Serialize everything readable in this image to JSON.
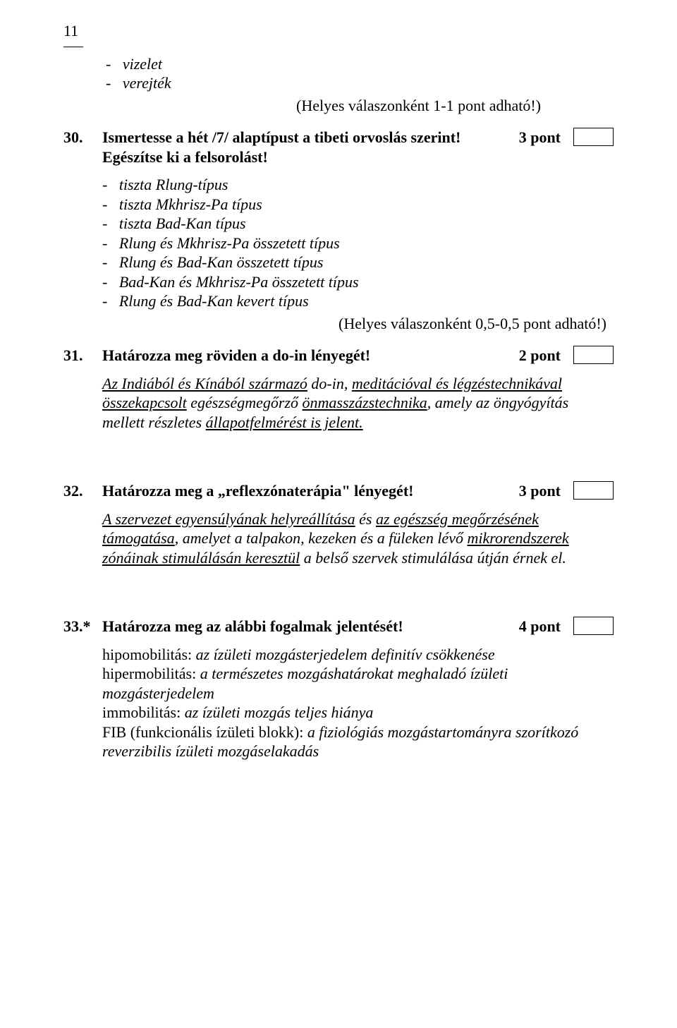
{
  "page_number": "11",
  "pre_list": [
    "vizelet",
    "verejték"
  ],
  "note_top": "(Helyes válaszonként 1-1 pont adható!)",
  "q30": {
    "num": "30.",
    "title_line1": "Ismertesse a hét /7/ alaptípust a tibeti orvoslás szerint!",
    "title_line2": "Egészítse ki a felsorolást!",
    "points": "3 pont",
    "items": [
      "tiszta Rlung-típus",
      "tiszta Mkhrisz-Pa típus",
      "tiszta Bad-Kan típus",
      "Rlung és Mkhrisz-Pa összetett típus",
      "Rlung és Bad-Kan összetett típus",
      "Bad-Kan és Mkhrisz-Pa összetett típus",
      "Rlung és Bad-Kan kevert típus"
    ],
    "after_note": "(Helyes válaszonként 0,5-0,5 pont adható!)"
  },
  "q31": {
    "num": "31.",
    "title": "Határozza meg röviden a do-in lényegét!",
    "points": "2 pont",
    "answer_parts": {
      "p1": "Az Indiából és Kínából származó",
      "p2": " do-in, ",
      "p3": "meditációval és légzéstechnikával összekapcsolt",
      "p4": " egészségmegőrző ",
      "p5": "önmasszázstechnika",
      "p6": ", amely az öngyógyítás mellett részletes ",
      "p7": "állapotfelmérést is jelent."
    }
  },
  "q32": {
    "num": "32.",
    "title": "Határozza meg a „reflexzónaterápia\" lényegét!",
    "points": "3 pont",
    "answer_parts": {
      "p1": "A szervezet egyensúlyának helyreállítása",
      "p2": " és ",
      "p3": "az egészség megőrzésének támogatása",
      "p4": ", amelyet a talpakon, kezeken és a füleken lévő ",
      "p5": "mikrorendszerek zónáinak stimulálásán keresztül",
      "p6": " a belső szervek stimulálása útján érnek el."
    }
  },
  "q33": {
    "num": "33.*",
    "title": "Határozza meg az alábbi fogalmak jelentését!",
    "points": "4 pont",
    "defs": {
      "l1a": "hipomobilitás: ",
      "l1b": "az ízületi mozgásterjedelem definitív csökkenése",
      "l2a": "hipermobilitás: ",
      "l2b": "a természetes mozgáshatárokat meghaladó ízületi mozgásterjedelem",
      "l3a": "immobilitás: ",
      "l3b": "az ízületi mozgás teljes hiánya",
      "l4a": "FIB (funkcionális ízületi blokk): ",
      "l4b": "a fiziológiás mozgástartományra szorítkozó reverzibilis ízületi mozgáselakadás"
    }
  }
}
